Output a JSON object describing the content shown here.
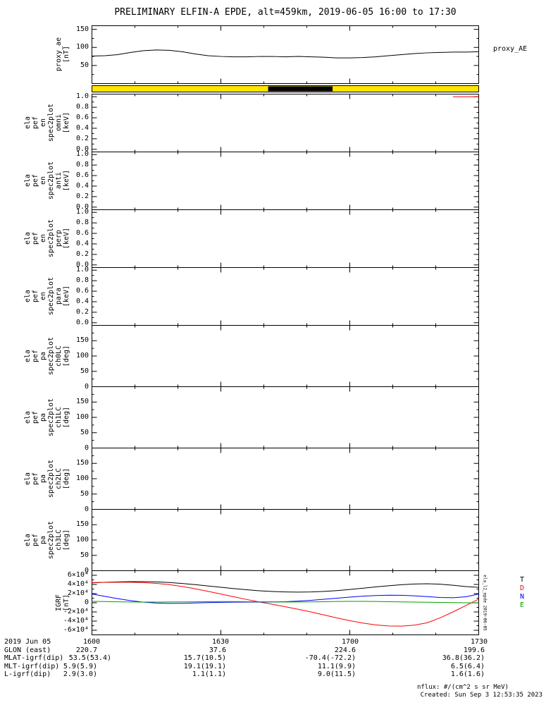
{
  "title": "PRELIMINARY ELFIN-A EPDE, alt=459km, 2019-06-05 16:00 to 17:30",
  "footer": {
    "nflux_note": "nflux: #/(cm^2 s sr MeV)",
    "created_note": "Created: Sun Sep  3 12:53:35 2023"
  },
  "side_note": "ela_l2_epde 2019-06-05",
  "bottom_axis": {
    "date_label": "2019 Jun 05",
    "time_ticks": [
      "1600",
      "1630",
      "1700",
      "1730"
    ],
    "rows": [
      {
        "label": "GLON (east)",
        "values": [
          "220.7",
          "37.6",
          "224.6",
          "199.6"
        ]
      },
      {
        "label": "MLAT-igrf(dip)",
        "values": [
          "53.5(53.4)",
          "15.7(10.5)",
          "-70.4(-72.2)",
          "36.8(36.2)"
        ]
      },
      {
        "label": "MLT-igrf(dip)",
        "values": [
          "5.9(5.9)",
          "19.1(19.1)",
          "11.1(9.9)",
          "6.5(6.4)"
        ]
      },
      {
        "label": "L-igrf(dip)",
        "values": [
          "2.9(3.0)",
          "1.1(1.1)",
          "9.0(11.5)",
          "1.6(1.6)"
        ]
      }
    ]
  },
  "chart_data": [
    {
      "id": "proxy-ae",
      "type": "line",
      "box": {
        "top": 36,
        "height": 82
      },
      "ylabel_lines": [
        "proxy_ae",
        "[nT]"
      ],
      "ylim": [
        0,
        160
      ],
      "yticks": [
        {
          "v": 50,
          "l": "50"
        },
        {
          "v": 100,
          "l": "100"
        },
        {
          "v": 150,
          "l": "150"
        }
      ],
      "yminor": [
        25,
        75,
        125
      ],
      "right_label": "proxy_AE",
      "xlim_minutes": [
        0,
        90
      ],
      "x_tick_times": [
        "1600",
        "1630",
        "1700",
        "1730"
      ],
      "series": [
        {
          "name": "proxy_AE",
          "color": "#000000",
          "x": [
            0,
            3,
            6,
            9,
            12,
            15,
            18,
            21,
            24,
            27,
            30,
            33,
            36,
            39,
            42,
            45,
            48,
            51,
            54,
            57,
            60,
            63,
            66,
            69,
            72,
            75,
            78,
            81,
            84,
            87,
            90
          ],
          "y": [
            76,
            77,
            80,
            86,
            91,
            93,
            92,
            88,
            82,
            77,
            75,
            74,
            74,
            75,
            75,
            74,
            75,
            74,
            73,
            71,
            71,
            72,
            74,
            77,
            80,
            83,
            85,
            86,
            87,
            87,
            88
          ]
        }
      ]
    },
    {
      "id": "fast-bar",
      "type": "span",
      "box": {
        "top": 121,
        "height": 10
      },
      "background": "#ffe600",
      "segments": [
        {
          "t0": 41,
          "t1": 56,
          "color": "#000000"
        }
      ]
    },
    {
      "id": "ela-pef-en-spec2plot-omni",
      "type": "spec",
      "box": {
        "top": 133,
        "height": 82
      },
      "ylabel_lines": [
        "ela",
        "pef",
        "en",
        "spec2plot",
        "omni",
        "[keV]"
      ],
      "ylim": [
        -0.05,
        1.05
      ],
      "yticks": [
        {
          "v": 0.0,
          "l": "0.0"
        },
        {
          "v": 0.2,
          "l": "0.2"
        },
        {
          "v": 0.4,
          "l": "0.4"
        },
        {
          "v": 0.6,
          "l": "0.6"
        },
        {
          "v": 0.8,
          "l": "0.8"
        },
        {
          "v": 1.0,
          "l": "1.0"
        }
      ],
      "yminor": [
        0.1,
        0.3,
        0.5,
        0.7,
        0.9
      ],
      "series": [
        {
          "name": "omni-edge",
          "color": "#ff0000",
          "x": [
            84,
            90
          ],
          "y": [
            1.0,
            1.0
          ]
        }
      ]
    },
    {
      "id": "ela-pef-en-spec2plot-anti",
      "type": "spec",
      "box": {
        "top": 215,
        "height": 82
      },
      "ylabel_lines": [
        "ela",
        "pef",
        "en",
        "spec2plot",
        "anti",
        "[keV]"
      ],
      "ylim": [
        -0.05,
        1.05
      ],
      "yticks": [
        {
          "v": 0.0,
          "l": "0.0"
        },
        {
          "v": 0.2,
          "l": "0.2"
        },
        {
          "v": 0.4,
          "l": "0.4"
        },
        {
          "v": 0.6,
          "l": "0.6"
        },
        {
          "v": 0.8,
          "l": "0.8"
        },
        {
          "v": 1.0,
          "l": "1.0"
        }
      ],
      "yminor": [
        0.1,
        0.3,
        0.5,
        0.7,
        0.9
      ],
      "series": []
    },
    {
      "id": "ela-pef-en-spec2plot-perp",
      "type": "spec",
      "box": {
        "top": 297,
        "height": 82
      },
      "ylabel_lines": [
        "ela",
        "pef",
        "en",
        "spec2plot",
        "perp",
        "[keV]"
      ],
      "ylim": [
        -0.05,
        1.05
      ],
      "yticks": [
        {
          "v": 0.0,
          "l": "0.0"
        },
        {
          "v": 0.2,
          "l": "0.2"
        },
        {
          "v": 0.4,
          "l": "0.4"
        },
        {
          "v": 0.6,
          "l": "0.6"
        },
        {
          "v": 0.8,
          "l": "0.8"
        },
        {
          "v": 1.0,
          "l": "1.0"
        }
      ],
      "yminor": [
        0.1,
        0.3,
        0.5,
        0.7,
        0.9
      ],
      "series": []
    },
    {
      "id": "ela-pef-en-spec2plot-para",
      "type": "spec",
      "box": {
        "top": 379,
        "height": 82
      },
      "ylabel_lines": [
        "ela",
        "pef",
        "en",
        "spec2plot",
        "para",
        "[keV]"
      ],
      "ylim": [
        -0.05,
        1.05
      ],
      "yticks": [
        {
          "v": 0.0,
          "l": "0.0"
        },
        {
          "v": 0.2,
          "l": "0.2"
        },
        {
          "v": 0.4,
          "l": "0.4"
        },
        {
          "v": 0.6,
          "l": "0.6"
        },
        {
          "v": 0.8,
          "l": "0.8"
        },
        {
          "v": 1.0,
          "l": "1.0"
        }
      ],
      "yminor": [
        0.1,
        0.3,
        0.5,
        0.7,
        0.9
      ],
      "series": []
    },
    {
      "id": "ela-pef-pa-spec2plot-ch0LC",
      "type": "spec",
      "box": {
        "top": 461,
        "height": 87
      },
      "ylabel_lines": [
        "ela",
        "pef",
        "pa",
        "spec2plot",
        "ch0LC",
        "[deg]"
      ],
      "ylim": [
        0,
        200
      ],
      "yticks": [
        {
          "v": 0,
          "l": "0"
        },
        {
          "v": 50,
          "l": "50"
        },
        {
          "v": 100,
          "l": "100"
        },
        {
          "v": 150,
          "l": "150"
        }
      ],
      "yminor": [
        25,
        75,
        125,
        175
      ],
      "series": []
    },
    {
      "id": "ela-pef-pa-spec2plot-ch1LC",
      "type": "spec",
      "box": {
        "top": 548,
        "height": 87
      },
      "ylabel_lines": [
        "ela",
        "pef",
        "pa",
        "spec2plot",
        "ch1LC",
        "[deg]"
      ],
      "ylim": [
        0,
        200
      ],
      "yticks": [
        {
          "v": 0,
          "l": "0"
        },
        {
          "v": 50,
          "l": "50"
        },
        {
          "v": 100,
          "l": "100"
        },
        {
          "v": 150,
          "l": "150"
        }
      ],
      "yminor": [
        25,
        75,
        125,
        175
      ],
      "series": []
    },
    {
      "id": "ela-pef-pa-spec2plot-ch2LC",
      "type": "spec",
      "box": {
        "top": 635,
        "height": 87
      },
      "ylabel_lines": [
        "ela",
        "pef",
        "pa",
        "spec2plot",
        "ch2LC",
        "[deg]"
      ],
      "ylim": [
        0,
        200
      ],
      "yticks": [
        {
          "v": 0,
          "l": "0"
        },
        {
          "v": 50,
          "l": "50"
        },
        {
          "v": 100,
          "l": "100"
        },
        {
          "v": 150,
          "l": "150"
        }
      ],
      "yminor": [
        25,
        75,
        125,
        175
      ],
      "series": []
    },
    {
      "id": "ela-pef-pa-spec2plot-ch3LC",
      "type": "spec",
      "box": {
        "top": 722,
        "height": 87
      },
      "ylabel_lines": [
        "ela",
        "pef",
        "pa",
        "spec2plot",
        "ch3LC",
        "[deg]"
      ],
      "ylim": [
        0,
        200
      ],
      "yticks": [
        {
          "v": 0,
          "l": "0"
        },
        {
          "v": 50,
          "l": "50"
        },
        {
          "v": 100,
          "l": "100"
        },
        {
          "v": 150,
          "l": "150"
        }
      ],
      "yminor": [
        25,
        75,
        125,
        175
      ],
      "series": []
    },
    {
      "id": "igrf",
      "type": "line",
      "box": {
        "top": 809,
        "height": 91
      },
      "ylabel_lines": [
        "IGRF",
        "[nT]"
      ],
      "ylim": [
        -70000,
        70000
      ],
      "yticks": [
        {
          "v": 60000,
          "l": "6×10⁴"
        },
        {
          "v": 40000,
          "l": "4×10⁴"
        },
        {
          "v": 20000,
          "l": "2×10⁴"
        },
        {
          "v": 0,
          "l": "0"
        },
        {
          "v": -20000,
          "l": "-2×10⁴"
        },
        {
          "v": -40000,
          "l": "-4×10⁴"
        },
        {
          "v": -60000,
          "l": "-6×10⁴"
        }
      ],
      "yminor": [
        50000,
        30000,
        10000,
        -10000,
        -30000,
        -50000
      ],
      "legend": [
        {
          "l": "T",
          "c": "#000000"
        },
        {
          "l": "D",
          "c": "#ff0000"
        },
        {
          "l": "N",
          "c": "#0000ff"
        },
        {
          "l": "E",
          "c": "#00a000"
        }
      ],
      "series": [
        {
          "name": "T",
          "color": "#000000",
          "x": [
            0,
            3,
            6,
            9,
            12,
            15,
            18,
            21,
            24,
            27,
            30,
            33,
            36,
            39,
            42,
            45,
            48,
            51,
            54,
            57,
            60,
            63,
            66,
            69,
            72,
            75,
            78,
            81,
            84,
            87,
            90
          ],
          "y": [
            43500,
            44800,
            45600,
            46100,
            46200,
            45600,
            44200,
            42200,
            39600,
            36800,
            33800,
            31000,
            28400,
            26200,
            24600,
            23600,
            23200,
            23600,
            24800,
            26600,
            29000,
            31800,
            34600,
            37200,
            39400,
            41000,
            41600,
            40600,
            38200,
            35400,
            33600
          ]
        },
        {
          "name": "D",
          "color": "#ff0000",
          "x": [
            0,
            3,
            6,
            9,
            12,
            15,
            18,
            21,
            24,
            27,
            30,
            33,
            36,
            39,
            42,
            45,
            48,
            51,
            54,
            57,
            60,
            63,
            66,
            69,
            72,
            75,
            78,
            81,
            84,
            87,
            90
          ],
          "y": [
            44000,
            44600,
            44900,
            44800,
            44000,
            42400,
            39600,
            35600,
            30600,
            25000,
            19000,
            13000,
            7200,
            1800,
            -3400,
            -8600,
            -14200,
            -20200,
            -26600,
            -33000,
            -39000,
            -44200,
            -48200,
            -50600,
            -51000,
            -48800,
            -43600,
            -33000,
            -20000,
            -6000,
            8000
          ]
        },
        {
          "name": "N",
          "color": "#0000ff",
          "x": [
            0,
            3,
            6,
            9,
            12,
            15,
            18,
            21,
            24,
            27,
            30,
            33,
            36,
            39,
            42,
            45,
            48,
            51,
            54,
            57,
            60,
            63,
            66,
            69,
            72,
            75,
            78,
            81,
            84,
            87,
            90
          ],
          "y": [
            19000,
            14000,
            9000,
            4600,
            1400,
            -600,
            -1400,
            -1200,
            -400,
            400,
            1000,
            1400,
            1600,
            1600,
            1800,
            2400,
            3600,
            5400,
            7600,
            10000,
            12400,
            14400,
            15800,
            16600,
            16400,
            15200,
            13400,
            11600,
            11000,
            13000,
            19000
          ]
        },
        {
          "name": "E",
          "color": "#00a000",
          "x": [
            0,
            3,
            6,
            9,
            12,
            15,
            18,
            21,
            24,
            27,
            30,
            33,
            36,
            39,
            42,
            45,
            48,
            51,
            54,
            57,
            60,
            63,
            66,
            69,
            72,
            75,
            78,
            81,
            84,
            87,
            90
          ],
          "y": [
            3000,
            2600,
            2200,
            1800,
            1600,
            1600,
            1800,
            2000,
            2200,
            2400,
            2600,
            2600,
            2400,
            2200,
            2000,
            1800,
            1800,
            2000,
            2400,
            2800,
            3000,
            3000,
            2800,
            2400,
            2000,
            1600,
            1200,
            800,
            400,
            0,
            -400
          ]
        }
      ]
    }
  ]
}
